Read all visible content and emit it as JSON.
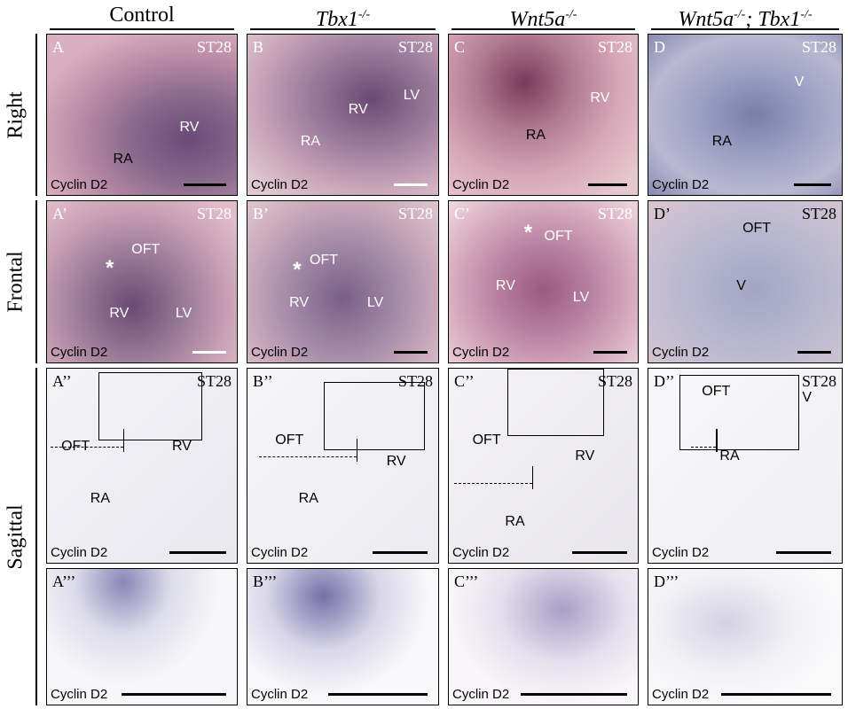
{
  "headers": [
    [
      {
        "text": "Control"
      }
    ],
    [
      {
        "text": "Tbx1",
        "sup": "-/-"
      }
    ],
    [
      {
        "text": "Wnt5a",
        "sup": "-/-"
      }
    ],
    [
      {
        "text": "Wnt5a",
        "sup": "-/-"
      },
      {
        "text": "; Tbx1",
        "sup": "-/-"
      }
    ]
  ],
  "row_labels": [
    "Right",
    "Frontal",
    "Sagittal"
  ],
  "panels": [
    [
      {
        "id": "A",
        "stage": "ST28",
        "labels": [
          "RV",
          "RA"
        ],
        "caption": "Cyclin D2"
      },
      {
        "id": "B",
        "stage": "ST28",
        "labels": [
          "RV",
          "LV",
          "RA"
        ],
        "caption": "Cyclin D2"
      },
      {
        "id": "C",
        "stage": "ST28",
        "labels": [
          "RV",
          "RA"
        ],
        "caption": "Cyclin D2"
      },
      {
        "id": "D",
        "stage": "ST28",
        "labels": [
          "V",
          "RA"
        ],
        "caption": "Cyclin D2"
      }
    ],
    [
      {
        "id": "A’",
        "stage": "ST28",
        "labels": [
          "OFT",
          "RV",
          "LV",
          "*"
        ],
        "caption": "Cyclin D2"
      },
      {
        "id": "B’",
        "stage": "ST28",
        "labels": [
          "OFT",
          "RV",
          "LV",
          "*"
        ],
        "caption": "Cyclin D2"
      },
      {
        "id": "C’",
        "stage": "ST28",
        "labels": [
          "OFT",
          "RV",
          "LV",
          "*"
        ],
        "caption": "Cyclin D2"
      },
      {
        "id": "D’",
        "stage": "ST28",
        "labels": [
          "OFT",
          "V"
        ],
        "caption": "Cyclin D2"
      }
    ],
    [
      {
        "id": "A’’",
        "stage": "ST28",
        "labels": [
          "OFT",
          "RV",
          "RA"
        ],
        "caption": "Cyclin D2"
      },
      {
        "id": "B’’",
        "stage": "ST28",
        "labels": [
          "OFT",
          "RV",
          "RA"
        ],
        "caption": "Cyclin D2"
      },
      {
        "id": "C’’",
        "stage": "ST28",
        "labels": [
          "OFT",
          "RV",
          "RA"
        ],
        "caption": "Cyclin D2"
      },
      {
        "id": "D’’",
        "stage": "ST28",
        "labels": [
          "OFT",
          "V",
          "RA"
        ],
        "caption": "Cyclin D2"
      }
    ],
    [
      {
        "id": "A’’’",
        "caption": "Cyclin D2"
      },
      {
        "id": "B’’’",
        "caption": "Cyclin D2"
      },
      {
        "id": "C’’’",
        "caption": "Cyclin D2"
      },
      {
        "id": "D’’’",
        "caption": "Cyclin D2"
      }
    ]
  ]
}
